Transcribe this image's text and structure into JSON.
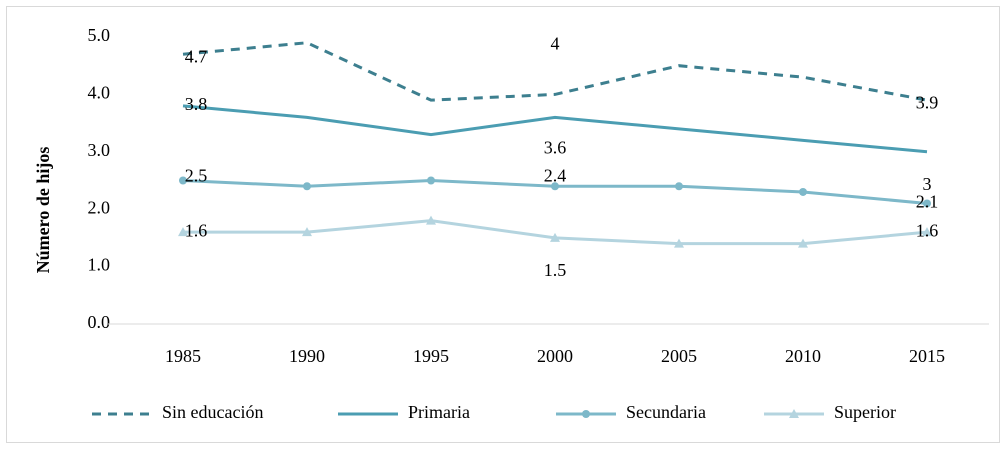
{
  "chart_data": {
    "type": "line",
    "y_label": "Número de hijos",
    "categories": [
      "1985",
      "1990",
      "1995",
      "2000",
      "2005",
      "2010",
      "2015"
    ],
    "ylim": [
      0,
      5
    ],
    "yticks": [
      {
        "value": 0,
        "label": "0.0"
      },
      {
        "value": 1,
        "label": "1.0"
      },
      {
        "value": 2,
        "label": "2.0"
      },
      {
        "value": 3,
        "label": "3.0"
      },
      {
        "value": 4,
        "label": "4.0"
      },
      {
        "value": 5,
        "label": "5.0"
      }
    ],
    "grid": false,
    "legend": "bottom",
    "series": [
      {
        "name": "Sin educación",
        "color": "#3d7f8f",
        "dash": true,
        "marker": "none",
        "values": [
          4.7,
          4.9,
          3.9,
          4.0,
          4.5,
          4.3,
          3.9
        ],
        "value_labels": [
          "4.7",
          null,
          null,
          "4",
          null,
          null,
          "3.9"
        ]
      },
      {
        "name": "Primaria",
        "color": "#4b9db2",
        "dash": false,
        "marker": "none",
        "values": [
          3.8,
          3.6,
          3.3,
          3.6,
          3.4,
          3.2,
          3.0
        ],
        "value_labels": [
          "3.8",
          null,
          null,
          "3.6",
          null,
          null,
          "3"
        ]
      },
      {
        "name": "Secundaria",
        "color": "#7db8c9",
        "dash": false,
        "marker": "circle",
        "values": [
          2.5,
          2.4,
          2.5,
          2.4,
          2.4,
          2.3,
          2.1
        ],
        "value_labels": [
          "2.5",
          null,
          null,
          "2.4",
          null,
          null,
          "2.1"
        ]
      },
      {
        "name": "Superior",
        "color": "#b4d4df",
        "dash": false,
        "marker": "triangle",
        "values": [
          1.6,
          1.6,
          1.8,
          1.5,
          1.4,
          1.4,
          1.6
        ],
        "value_labels": [
          "1.6",
          null,
          null,
          "1.5",
          null,
          null,
          "1.6"
        ]
      }
    ]
  }
}
